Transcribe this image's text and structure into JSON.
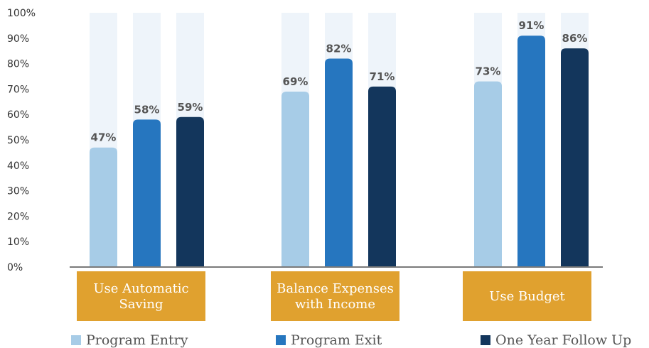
{
  "chart_data": {
    "type": "bar",
    "categories": [
      "Use Automatic Saving",
      "Balance Expenses with Income",
      "Use Budget"
    ],
    "category_lines": [
      [
        "Use Automatic",
        "Saving"
      ],
      [
        "Balance Expenses",
        "with Income"
      ],
      [
        "Use Budget"
      ]
    ],
    "series": [
      {
        "name": "Program Entry",
        "values": [
          47,
          69,
          73
        ],
        "color": "#a7cce7"
      },
      {
        "name": "Program Exit",
        "values": [
          58,
          82,
          91
        ],
        "color": "#2676bf"
      },
      {
        "name": "One Year Follow Up",
        "values": [
          59,
          71,
          86
        ],
        "color": "#13365c"
      }
    ],
    "data_labels": [
      [
        "47%",
        "69%",
        "73%"
      ],
      [
        "58%",
        "82%",
        "91%"
      ],
      [
        "59%",
        "71%",
        "86%"
      ]
    ],
    "yticks": [
      "0%",
      "10%",
      "20%",
      "30%",
      "40%",
      "50%",
      "60%",
      "70%",
      "80%",
      "90%",
      "100%"
    ],
    "ylim": [
      0,
      100
    ],
    "title": "",
    "xlabel": "",
    "ylabel": "",
    "legend_position": "bottom",
    "background_bar_color": "#eef4fa",
    "category_box_color": "#e0a12f",
    "axis_color": "#7a7a7a"
  }
}
